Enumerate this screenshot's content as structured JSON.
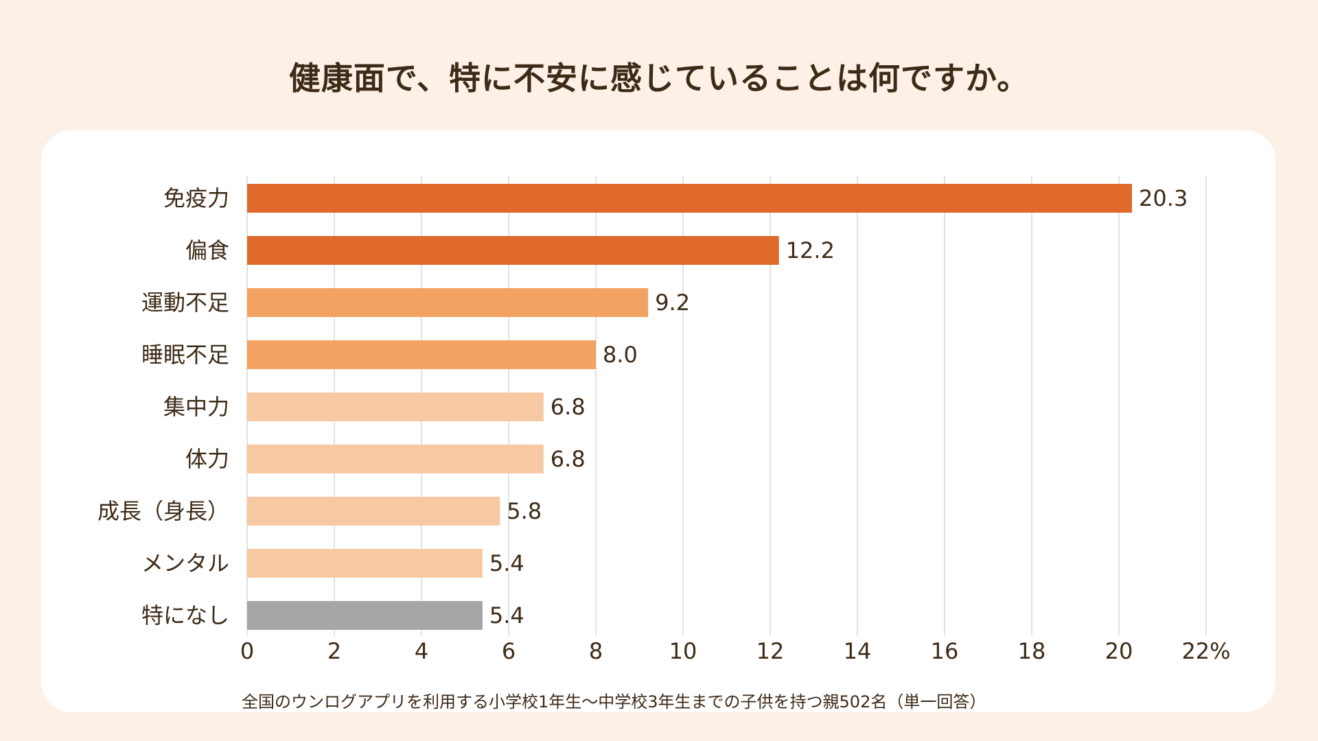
{
  "title": "健康面で、特に不安に感じていることは何ですか。",
  "note": "全国のウンログアプリを利用する小学校1年生〜中学校3年生までの子供を持つ親502名（単一回答）",
  "chart_data": {
    "type": "bar",
    "orientation": "horizontal",
    "title": "健康面で、特に不安に感じていることは何ですか。",
    "categories": [
      "免疫力",
      "偏食",
      "運動不足",
      "睡眠不足",
      "集中力",
      "体力",
      "成長（身長）",
      "メンタル",
      "特になし"
    ],
    "values": [
      20.3,
      12.2,
      9.2,
      8.0,
      6.8,
      6.8,
      5.8,
      5.4,
      5.4
    ],
    "value_labels": [
      "20.3",
      "12.2",
      "9.2",
      "8.0",
      "6.8",
      "6.8",
      "5.8",
      "5.4",
      "5.4"
    ],
    "bar_colors": [
      "#e06a2c",
      "#e06a2c",
      "#f3a262",
      "#f3a262",
      "#f7c9a3",
      "#f7c9a3",
      "#f7c9a3",
      "#f7c9a3",
      "#a6a6a6"
    ],
    "xlim": [
      0,
      22
    ],
    "xticks": [
      "0",
      "2",
      "4",
      "6",
      "8",
      "10",
      "12",
      "14",
      "16",
      "18",
      "20",
      "22%"
    ],
    "xtick_values": [
      0,
      2,
      4,
      6,
      8,
      10,
      12,
      14,
      16,
      18,
      20,
      22
    ],
    "xlabel": "",
    "ylabel": "",
    "grid": true
  }
}
